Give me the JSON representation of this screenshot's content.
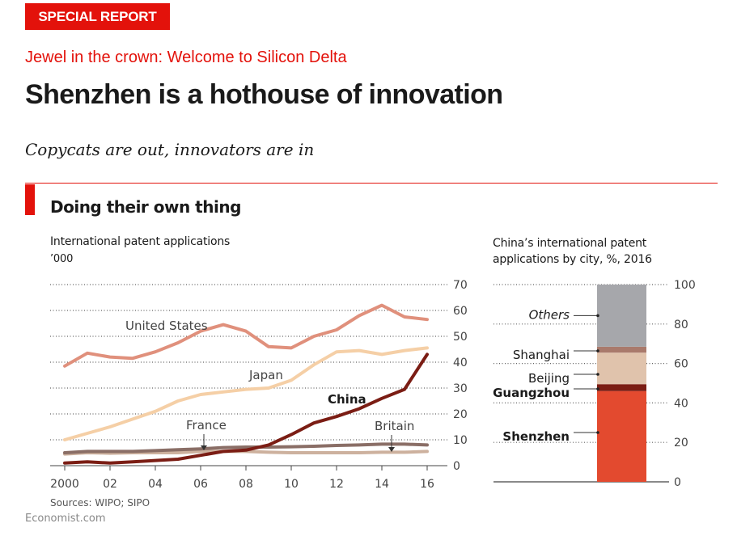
{
  "header": {
    "badge": "SPECIAL REPORT",
    "kicker": "Jewel in the crown: Welcome to Silicon Delta",
    "headline": "Shenzhen is a hothouse of innovation",
    "subhead": "Copycats are out, innovators are in"
  },
  "chart_title": "Doing their own thing",
  "footer": {
    "sources": "Sources: WIPO; SIPO",
    "credit": "Economist.com"
  },
  "colors": {
    "accent": "#e3120b",
    "united_states": "#e0907c",
    "japan": "#f5cfa6",
    "china": "#7b1d14",
    "france": "#8a6e66",
    "britain": "#cdb19e",
    "others": "#a6a7ab",
    "shanghai": "#a97a6c",
    "beijing": "#e0c3ac",
    "guangzhou": "#7b1d14",
    "shenzhen": "#e34a2f"
  },
  "chart_data": [
    {
      "type": "line",
      "title": "International patent applications",
      "ylabel": "’000",
      "x": [
        2000,
        2001,
        2002,
        2003,
        2004,
        2005,
        2006,
        2007,
        2008,
        2009,
        2010,
        2011,
        2012,
        2013,
        2014,
        2015,
        2016
      ],
      "xtick_labels": [
        "2000",
        "02",
        "04",
        "06",
        "08",
        "10",
        "12",
        "14",
        "16"
      ],
      "xtick_values": [
        2000,
        2002,
        2004,
        2006,
        2008,
        2010,
        2012,
        2014,
        2016
      ],
      "ylim": [
        0,
        70
      ],
      "yticks": [
        0,
        10,
        20,
        30,
        40,
        50,
        60,
        70
      ],
      "grid": true,
      "series": [
        {
          "name": "United States",
          "values": [
            38.5,
            43.5,
            42,
            41.5,
            44,
            47.5,
            52,
            54.5,
            52,
            46,
            45.5,
            50,
            52.5,
            58,
            62,
            57.5,
            56.5
          ]
        },
        {
          "name": "Japan",
          "values": [
            10,
            12.5,
            15,
            18,
            21,
            25,
            27.5,
            28.5,
            29.5,
            30,
            33,
            39,
            44,
            44.5,
            43,
            44.5,
            45.5
          ]
        },
        {
          "name": "China",
          "values": [
            1,
            1.5,
            1,
            1.5,
            2,
            2.5,
            4,
            5.5,
            6,
            8,
            12,
            16.5,
            19,
            22,
            26,
            29.5,
            43
          ]
        },
        {
          "name": "France",
          "values": [
            5,
            5.5,
            5.5,
            5.5,
            5.8,
            6.2,
            6.5,
            7,
            7.2,
            7.2,
            7.3,
            7.5,
            7.8,
            8,
            8.3,
            8.3,
            8
          ]
        },
        {
          "name": "Britain",
          "values": [
            4.5,
            5,
            4.8,
            5,
            5,
            5,
            5.5,
            5.5,
            5.5,
            5.2,
            5,
            5,
            5,
            5,
            5.2,
            5.2,
            5.5
          ]
        }
      ]
    },
    {
      "type": "bar",
      "title": "China’s international patent applications by city, %, 2016",
      "ylim": [
        0,
        100
      ],
      "yticks": [
        0,
        20,
        40,
        60,
        80,
        100
      ],
      "stacked": true,
      "series": [
        {
          "name": "Shenzhen",
          "value": 46
        },
        {
          "name": "Guangzhou",
          "value": 3.5
        },
        {
          "name": "Beijing",
          "value": 16
        },
        {
          "name": "Shanghai",
          "value": 3
        },
        {
          "name": "Others",
          "value": 31.5
        }
      ]
    }
  ]
}
